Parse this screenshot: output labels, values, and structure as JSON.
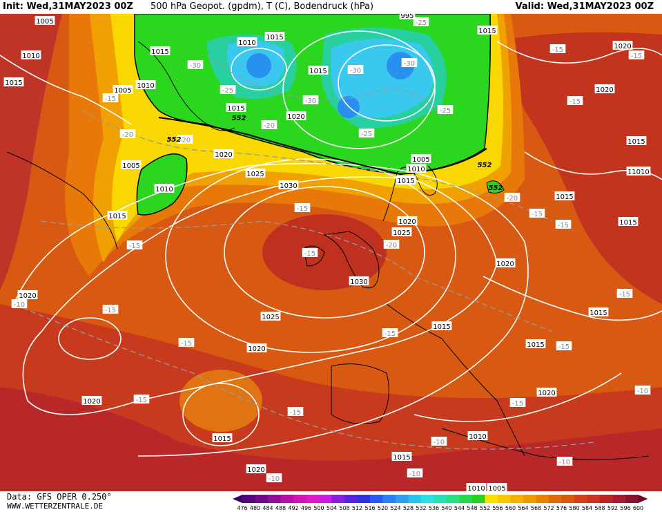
{
  "header": {
    "init": "Init: Wed,31MAY2023 00Z",
    "description": "500 hPa Geopot. (gpdm), T (C), Bodendruck (hPa)",
    "valid": "Valid: Wed,31MAY2023 00Z"
  },
  "footer": {
    "data_source": "Data: GFS OPER 0.250°",
    "website": "WWW.WETTERZENTRALE.DE"
  },
  "colors": {
    "deep_red": "#a81c1c",
    "red": "#c8321e",
    "orange_red": "#d84a14",
    "orange": "#e8640a",
    "orange_light": "#f08a0a",
    "yellow_orange": "#f8b400",
    "yellow": "#f8e000",
    "green": "#2ad61e",
    "green_light": "#44e04a",
    "teal": "#28d8a0",
    "cyan": "#3ac8ee",
    "blue": "#2a90f0"
  },
  "color_scale": {
    "labels": [
      "476",
      "480",
      "484",
      "488",
      "492",
      "496",
      "500",
      "504",
      "508",
      "512",
      "516",
      "520",
      "524",
      "528",
      "532",
      "536",
      "540",
      "544",
      "548",
      "552",
      "556",
      "560",
      "564",
      "568",
      "572",
      "576",
      "580",
      "584",
      "588",
      "592",
      "596",
      "600"
    ],
    "colors": [
      "#3a006e",
      "#56047e",
      "#74088c",
      "#920c9a",
      "#b410a8",
      "#d014b6",
      "#e018c8",
      "#c81ee0",
      "#8820e0",
      "#5824e0",
      "#3030e0",
      "#2a5af0",
      "#2a80f0",
      "#2aa0f0",
      "#2ac4f0",
      "#2ae0e0",
      "#2ae0b0",
      "#2ae080",
      "#2ad850",
      "#2ad01e",
      "#f8e000",
      "#f8c800",
      "#f8b000",
      "#f09a00",
      "#e88000",
      "#e06a0a",
      "#d85810",
      "#d04418",
      "#c83420",
      "#b82424",
      "#a81a30",
      "#8a1230",
      "#6a0a28"
    ]
  },
  "isobar_labels": [
    "1005",
    "1010",
    "1015",
    "1015",
    "1005",
    "1010",
    "1010",
    "1015",
    "1015",
    "1015",
    "1020",
    "995",
    "1015",
    "1020",
    "1020",
    "1015",
    "1005",
    "1010",
    "1015",
    "1025",
    "1030",
    "1020",
    "1025",
    "1015",
    "1020",
    "1020",
    "1030",
    "1025",
    "1020",
    "1015",
    "1015",
    "1015",
    "1020",
    "1015",
    "1015",
    "1015",
    "1005",
    "1010",
    "1020",
    "1015",
    "1010",
    "1015",
    "1020",
    "1020",
    "1010",
    "1005",
    "1010"
  ],
  "temperature_labels": [
    "-30",
    "-25",
    "-30",
    "-30",
    "-20",
    "-20",
    "-25",
    "-30",
    "-25",
    "-25",
    "-15",
    "-15",
    "-20",
    "-15",
    "-15",
    "-20",
    "-15",
    "-15",
    "-15",
    "-15",
    "-20",
    "-15",
    "-10",
    "-15",
    "-15",
    "-15",
    "-15",
    "-15",
    "-10",
    "-15",
    "-10",
    "-15",
    "-15",
    "-10",
    "-10",
    "-10"
  ],
  "geopotential_labels": [
    "552",
    "552",
    "552",
    "552"
  ]
}
